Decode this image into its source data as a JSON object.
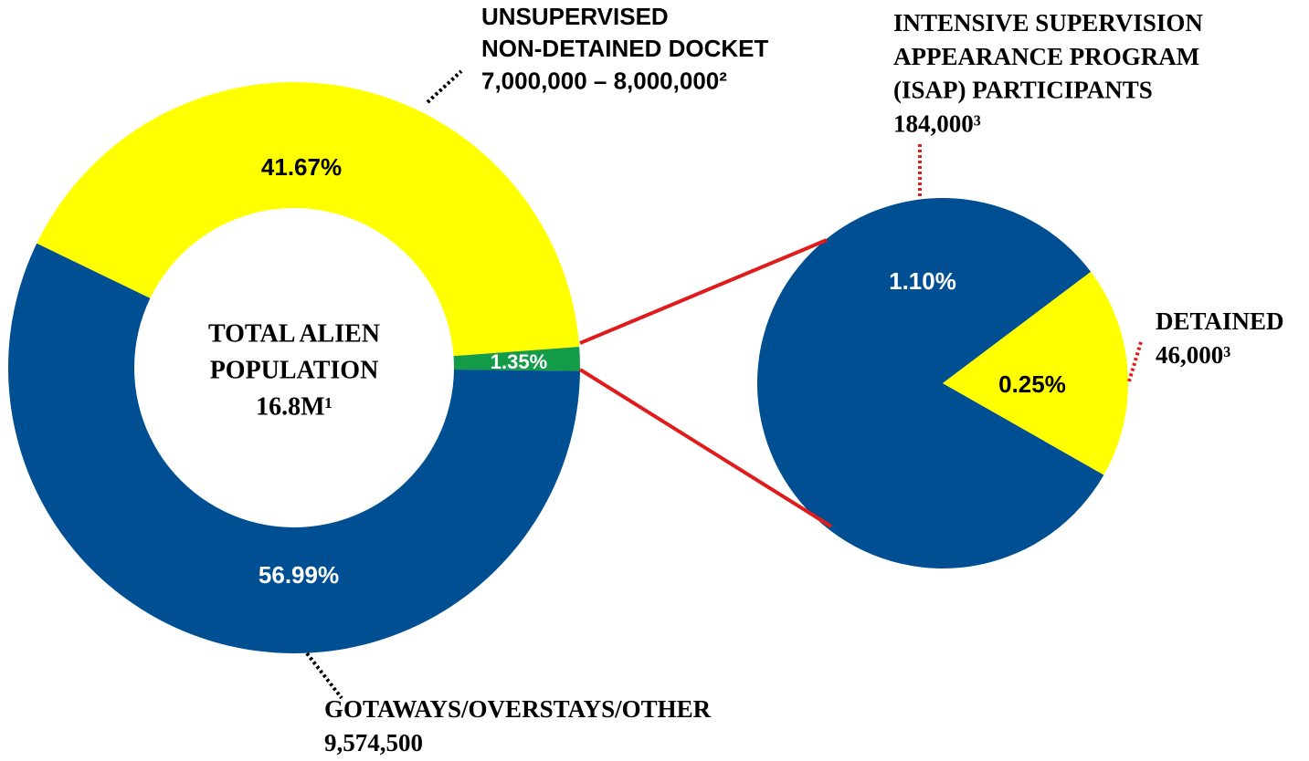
{
  "chart_data": [
    {
      "type": "donut",
      "center_label": [
        "TOTAL ALIEN",
        "POPULATION",
        "16.8M¹"
      ],
      "categories": [
        [
          "UNSUPERVISED",
          "NON-DETAINED DOCKET"
        ],
        null,
        [
          "GOTAWAYS/OVERSTAYS/OTHER"
        ]
      ],
      "counts": [
        "7,000,000 – 8,000,000²",
        null,
        "9,574,500"
      ],
      "values": [
        41.67,
        1.35,
        56.99
      ],
      "value_labels": [
        "41.67%",
        "1.35%",
        "56.99%"
      ],
      "colors": [
        "#ffff00",
        "#139b48",
        "#004f93"
      ]
    },
    {
      "type": "pie",
      "categories": [
        [
          "INTENSIVE SUPERVISION",
          "APPEARANCE PROGRAM",
          "(ISAP) PARTICIPANTS"
        ],
        [
          "DETAINED"
        ]
      ],
      "counts": [
        "184,000³",
        "46,000³"
      ],
      "values": [
        1.1,
        0.25
      ],
      "value_labels": [
        "1.10%",
        "0.25%"
      ],
      "colors": [
        "#004f93",
        "#ffff00"
      ]
    }
  ]
}
